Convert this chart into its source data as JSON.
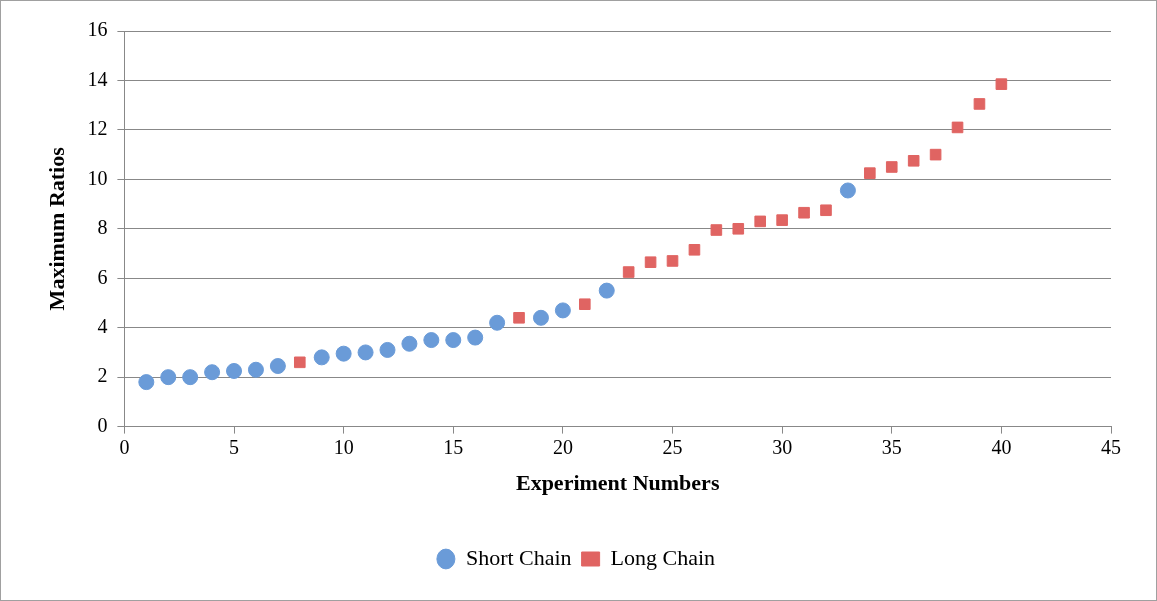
{
  "chart_data": {
    "type": "scatter",
    "xlabel": "Experiment Numbers",
    "ylabel": "Maximum Ratios",
    "xlim": [
      0,
      45
    ],
    "xticks": [
      0,
      5,
      10,
      15,
      20,
      25,
      30,
      35,
      40,
      45
    ],
    "ylim": [
      0,
      16
    ],
    "yticks": [
      0,
      2,
      4,
      6,
      8,
      10,
      12,
      14,
      16
    ],
    "grid": "y",
    "legend": "bottom",
    "series": [
      {
        "name": "Short Chain",
        "color": "#6a9bd8",
        "marker": "circle",
        "x": [
          1,
          2,
          3,
          4,
          5,
          6,
          7,
          9,
          10,
          11,
          12,
          13,
          14,
          15,
          16,
          17,
          19,
          20,
          22,
          33
        ],
        "values": [
          1.8,
          2.0,
          2.0,
          2.2,
          2.25,
          2.3,
          2.45,
          2.8,
          2.95,
          3.0,
          3.1,
          3.35,
          3.5,
          3.5,
          3.6,
          4.2,
          4.4,
          4.7,
          5.5,
          9.55
        ]
      },
      {
        "name": "Long Chain",
        "color": "#e06462",
        "marker": "square",
        "x": [
          8,
          18,
          21,
          23,
          24,
          25,
          26,
          27,
          28,
          29,
          30,
          31,
          32,
          34,
          35,
          36,
          37,
          38,
          39,
          40
        ],
        "values": [
          2.6,
          4.4,
          4.95,
          6.25,
          6.65,
          6.7,
          7.15,
          7.95,
          8.0,
          8.3,
          8.35,
          8.65,
          8.75,
          10.25,
          10.5,
          10.75,
          11.0,
          12.1,
          13.05,
          13.85
        ]
      }
    ]
  }
}
